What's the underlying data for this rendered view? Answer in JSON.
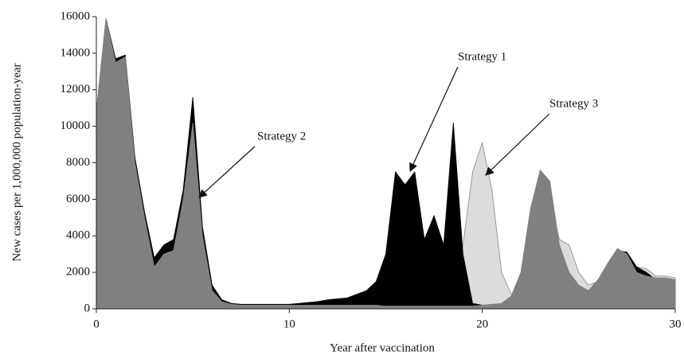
{
  "chart_data": {
    "type": "area",
    "x_label": "Year after vaccination",
    "y_label": "New cases per 1,000,000 population-year",
    "x": [
      0,
      0.5,
      1,
      1.5,
      2,
      2.5,
      3,
      3.5,
      4,
      4.5,
      5,
      5.5,
      6,
      6.5,
      7,
      7.5,
      8,
      8.5,
      9,
      9.5,
      10,
      10.5,
      11,
      11.5,
      12,
      12.5,
      13,
      13.5,
      14,
      14.5,
      15,
      15.5,
      16,
      16.5,
      17,
      17.5,
      18,
      18.5,
      19,
      19.5,
      20,
      20.5,
      21,
      21.5,
      22,
      22.5,
      23,
      23.5,
      24,
      24.5,
      25,
      25.5,
      26,
      26.5,
      27,
      27.5,
      28,
      28.5,
      29,
      29.5,
      30
    ],
    "series": [
      {
        "name": "Strategy 3",
        "color": "#dcdcdc",
        "values": [
          10500,
          15500,
          13000,
          13500,
          7800,
          4800,
          2200,
          2800,
          3000,
          5800,
          10000,
          3800,
          900,
          350,
          200,
          200,
          200,
          200,
          200,
          200,
          200,
          200,
          200,
          200,
          200,
          200,
          200,
          200,
          200,
          200,
          200,
          250,
          300,
          400,
          500,
          800,
          1000,
          1500,
          3500,
          7500,
          9100,
          6500,
          2000,
          800,
          1000,
          3000,
          5500,
          6000,
          3800,
          3500,
          2000,
          1300,
          1500,
          2400,
          3000,
          2800,
          2300,
          2200,
          1800,
          1800,
          1700
        ]
      },
      {
        "name": "Strategy 1",
        "color": "#000000",
        "values": [
          10800,
          15900,
          13700,
          13900,
          8300,
          5300,
          2800,
          3500,
          3800,
          6500,
          11600,
          4500,
          1300,
          500,
          300,
          250,
          250,
          250,
          250,
          250,
          250,
          300,
          350,
          400,
          500,
          550,
          600,
          800,
          1000,
          1500,
          3000,
          7500,
          6800,
          7500,
          3800,
          5100,
          3500,
          10200,
          3000,
          300,
          200,
          200,
          250,
          300,
          1900,
          5400,
          7500,
          6900,
          3400,
          1900,
          1200,
          900,
          1500,
          2400,
          3200,
          3100,
          2300,
          2000,
          1600,
          1600,
          1500
        ]
      },
      {
        "name": "Strategy 2",
        "color": "#808080",
        "values": [
          10800,
          15900,
          13500,
          13800,
          8000,
          5000,
          2300,
          3000,
          3200,
          6000,
          10200,
          4000,
          1000,
          400,
          250,
          200,
          200,
          200,
          200,
          200,
          200,
          200,
          200,
          200,
          200,
          200,
          200,
          200,
          200,
          200,
          150,
          150,
          150,
          150,
          150,
          150,
          150,
          150,
          150,
          150,
          200,
          250,
          300,
          700,
          2000,
          5500,
          7600,
          7000,
          3500,
          2000,
          1300,
          1000,
          1600,
          2500,
          3300,
          3000,
          2000,
          1800,
          1700,
          1700,
          1600
        ]
      }
    ],
    "xlim": [
      0,
      30
    ],
    "xticks": [
      0,
      10,
      20,
      30
    ],
    "ylim": [
      0,
      16000
    ],
    "yticks": [
      0,
      2000,
      4000,
      6000,
      8000,
      10000,
      12000,
      14000,
      16000
    ],
    "grid": false
  }
}
